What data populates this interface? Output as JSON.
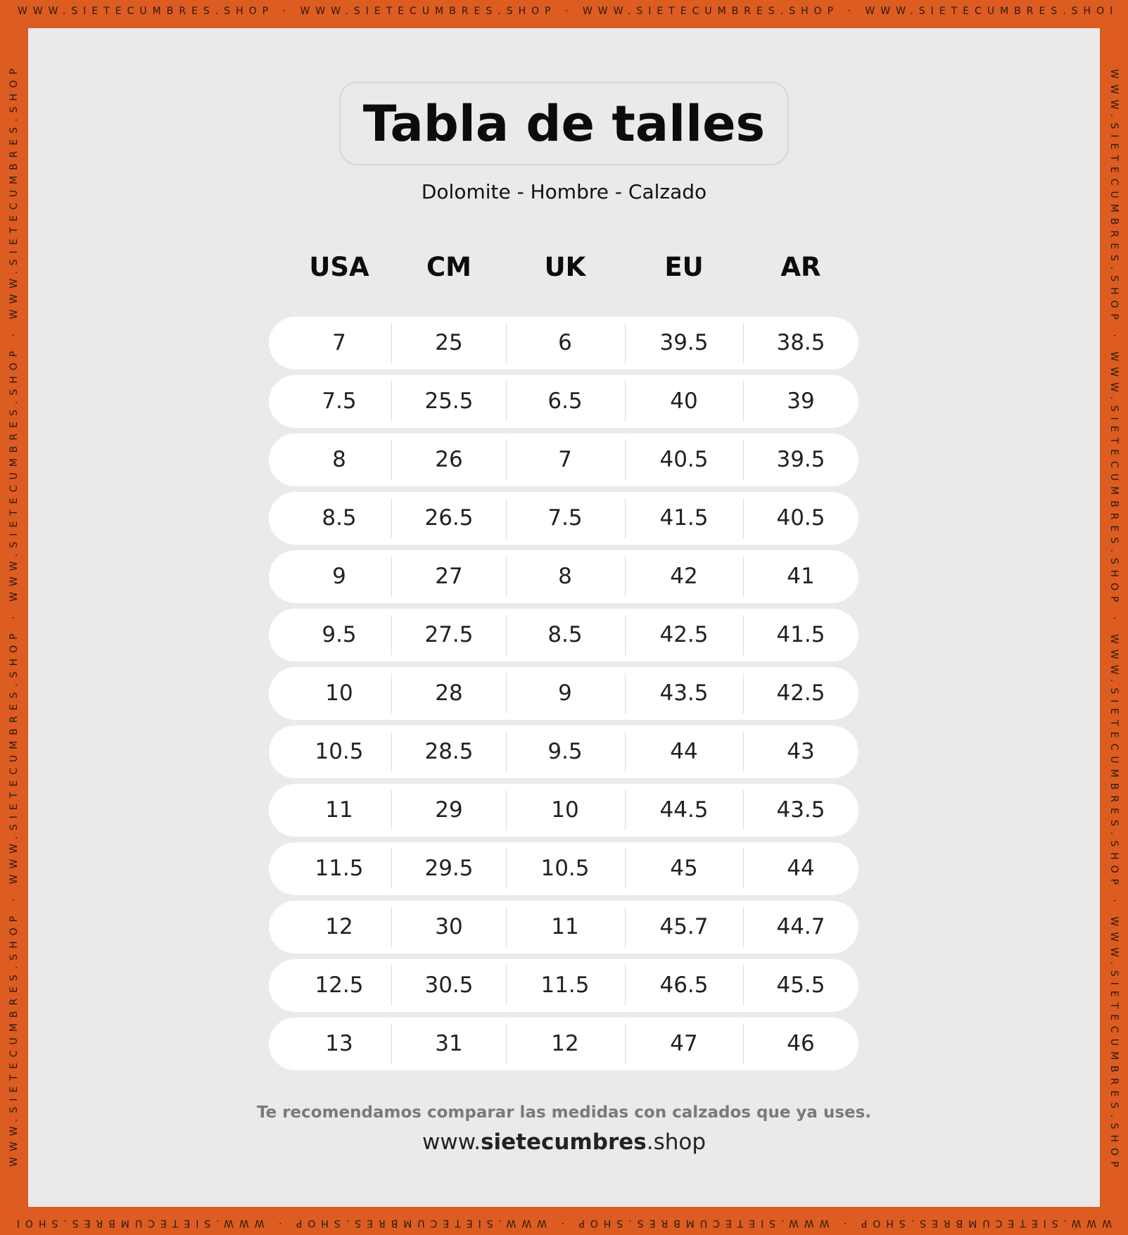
{
  "border_text": "WWW.SIETECUMBRES.SHOP",
  "colors": {
    "border": "#dc5c21",
    "background": "#eaeaea",
    "row": "#ffffff"
  },
  "title": "Tabla de talles",
  "subtitle": "Dolomite - Hombre - Calzado",
  "table": {
    "headers": [
      "USA",
      "CM",
      "UK",
      "EU",
      "AR"
    ],
    "rows": [
      [
        "7",
        "25",
        "6",
        "39.5",
        "38.5"
      ],
      [
        "7.5",
        "25.5",
        "6.5",
        "40",
        "39"
      ],
      [
        "8",
        "26",
        "7",
        "40.5",
        "39.5"
      ],
      [
        "8.5",
        "26.5",
        "7.5",
        "41.5",
        "40.5"
      ],
      [
        "9",
        "27",
        "8",
        "42",
        "41"
      ],
      [
        "9.5",
        "27.5",
        "8.5",
        "42.5",
        "41.5"
      ],
      [
        "10",
        "28",
        "9",
        "43.5",
        "42.5"
      ],
      [
        "10.5",
        "28.5",
        "9.5",
        "44",
        "43"
      ],
      [
        "11",
        "29",
        "10",
        "44.5",
        "43.5"
      ],
      [
        "11.5",
        "29.5",
        "10.5",
        "45",
        "44"
      ],
      [
        "12",
        "30",
        "11",
        "45.7",
        "44.7"
      ],
      [
        "12.5",
        "30.5",
        "11.5",
        "46.5",
        "45.5"
      ],
      [
        "13",
        "31",
        "12",
        "47",
        "46"
      ]
    ]
  },
  "footer": {
    "note": "Te recomendamos comparar las medidas con calzados que ya uses.",
    "url_prefix": "www.",
    "url_brand": "sietecumbres",
    "url_suffix": ".shop"
  }
}
